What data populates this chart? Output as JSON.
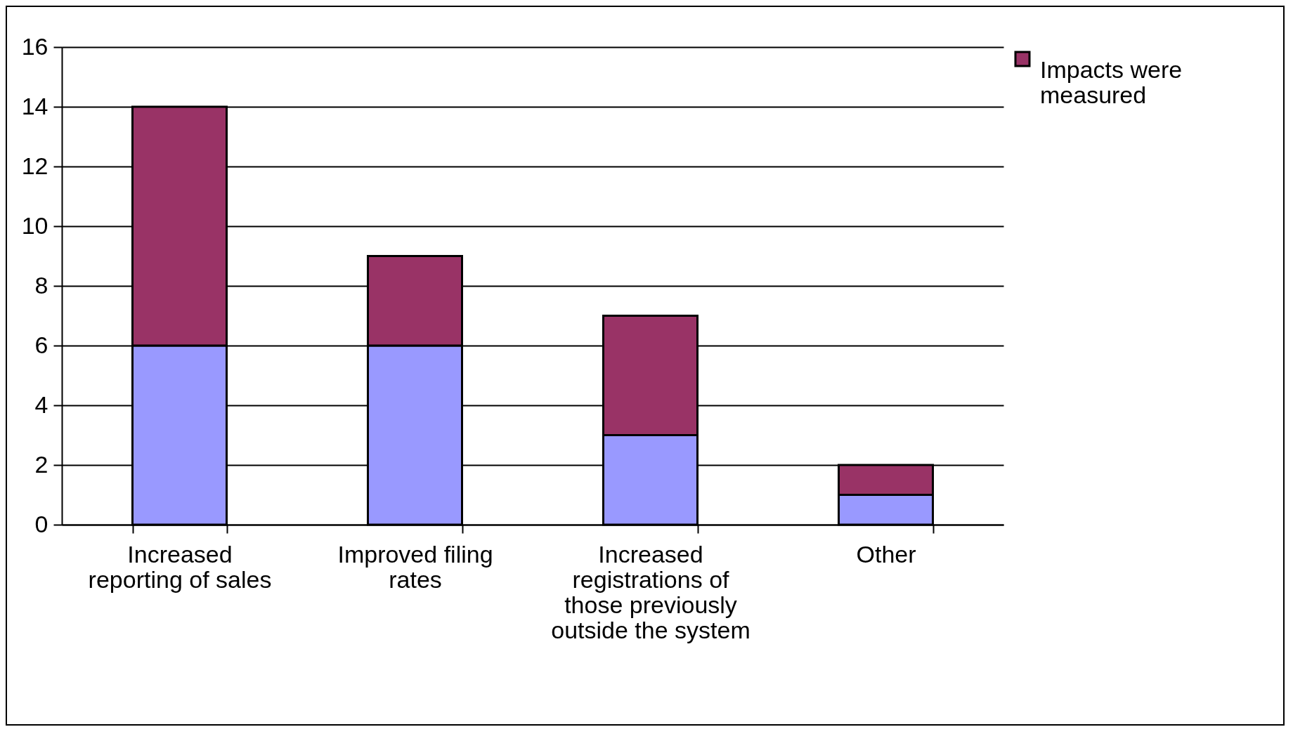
{
  "chart_data": {
    "type": "bar",
    "stacked": true,
    "categories": [
      "Increased reporting of sales",
      "Improved filing rates",
      "Increased registrations of those previously outside the system",
      "Other"
    ],
    "series": [
      {
        "color": "#9999ff",
        "values": [
          6,
          6,
          3,
          1
        ]
      },
      {
        "name": "Impacts were measured",
        "color": "#993366",
        "values": [
          8,
          3,
          4,
          1
        ]
      }
    ],
    "ylim": [
      0,
      16
    ],
    "yticks": [
      0,
      2,
      4,
      6,
      8,
      10,
      12,
      14,
      16
    ],
    "grid": "y",
    "legend": "right"
  }
}
